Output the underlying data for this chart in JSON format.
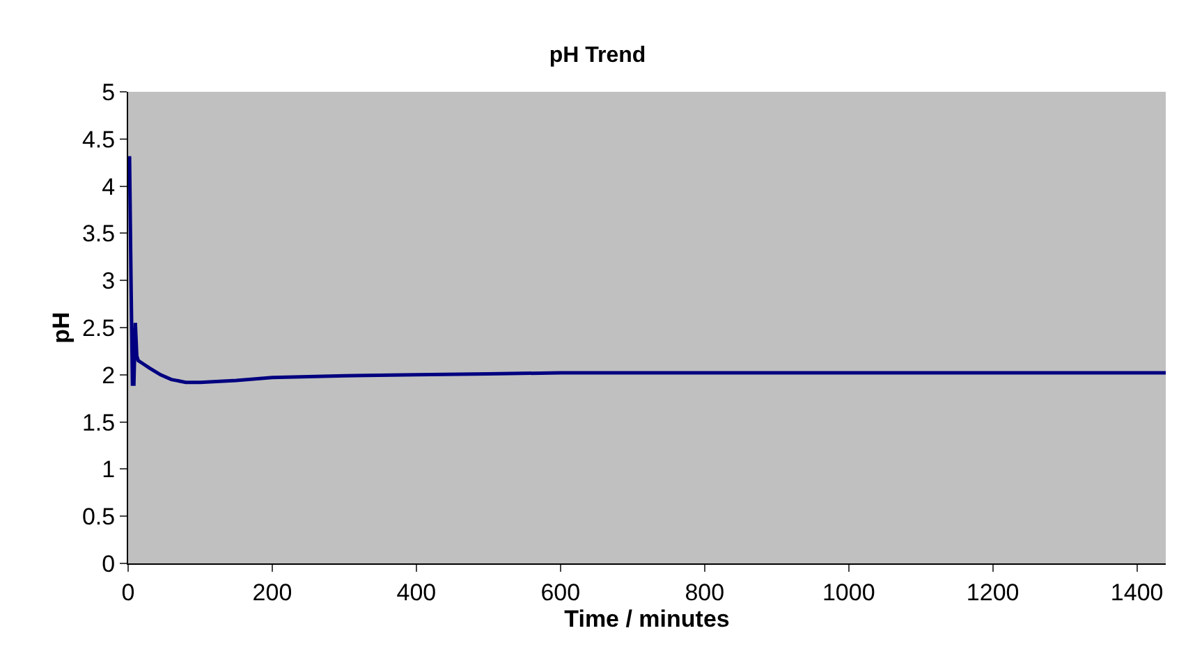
{
  "chart_data": {
    "type": "line",
    "title": "pH Trend",
    "xlabel": "Time / minutes",
    "ylabel": "pH",
    "x": [
      0,
      2,
      4,
      6,
      8,
      10,
      12,
      14,
      20,
      30,
      45,
      60,
      80,
      100,
      150,
      200,
      250,
      300,
      400,
      500,
      600,
      700,
      800,
      900,
      1000,
      1100,
      1200,
      1300,
      1400,
      1440
    ],
    "series": [
      {
        "color": "#000080",
        "values": [
          4.3,
          4.3,
          3.0,
          1.9,
          1.9,
          2.55,
          2.2,
          2.15,
          2.12,
          2.07,
          2.0,
          1.95,
          1.92,
          1.92,
          1.94,
          1.97,
          1.98,
          1.99,
          2.0,
          2.01,
          2.02,
          2.02,
          2.02,
          2.02,
          2.02,
          2.02,
          2.02,
          2.02,
          2.02,
          2.02
        ]
      }
    ],
    "xlim": [
      0,
      1440
    ],
    "xticks": [
      0,
      200,
      400,
      600,
      800,
      1000,
      1200,
      1400
    ],
    "ylim": [
      0,
      5
    ],
    "yticks": [
      0,
      0.5,
      1,
      1.5,
      2,
      2.5,
      3,
      3.5,
      4,
      4.5,
      5
    ],
    "grid": false,
    "legend": false,
    "marker": "none",
    "line_style": "solid"
  }
}
